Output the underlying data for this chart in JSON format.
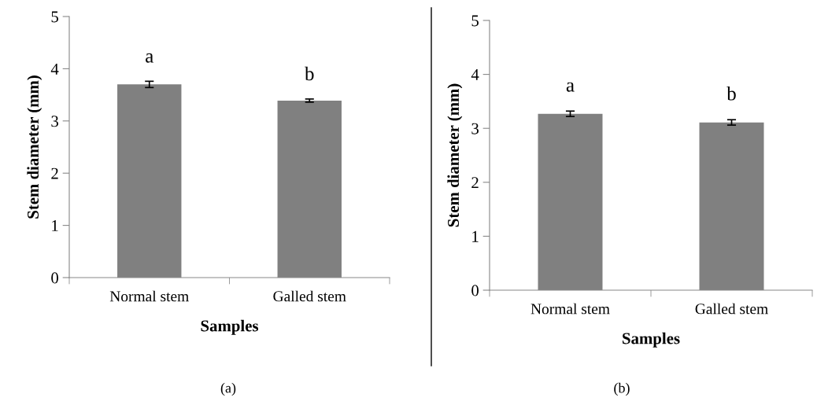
{
  "chart_data": [
    {
      "type": "bar",
      "xlabel": "Samples",
      "ylabel": "Stem diameter (mm)",
      "categories": [
        "Normal stem",
        "Galled stem"
      ],
      "values": [
        3.7,
        3.39
      ],
      "errors": [
        0.06,
        0.03
      ],
      "color": "#808080",
      "ylim": [
        0,
        5
      ],
      "yticks": [
        0,
        1,
        2,
        3,
        4,
        5
      ],
      "grid": false,
      "legend": false,
      "annotations": [
        "a",
        "b",
        "(a)"
      ]
    },
    {
      "type": "bar",
      "xlabel": "Samples",
      "ylabel": "Stem diameter (mm)",
      "categories": [
        "Normal stem",
        "Galled stem"
      ],
      "values": [
        3.27,
        3.11
      ],
      "errors": [
        0.05,
        0.05
      ],
      "color": "#808080",
      "ylim": [
        0,
        5
      ],
      "yticks": [
        0,
        1,
        2,
        3,
        4,
        5
      ],
      "grid": false,
      "legend": false,
      "annotations": [
        "a",
        "b",
        "(b)"
      ]
    }
  ]
}
